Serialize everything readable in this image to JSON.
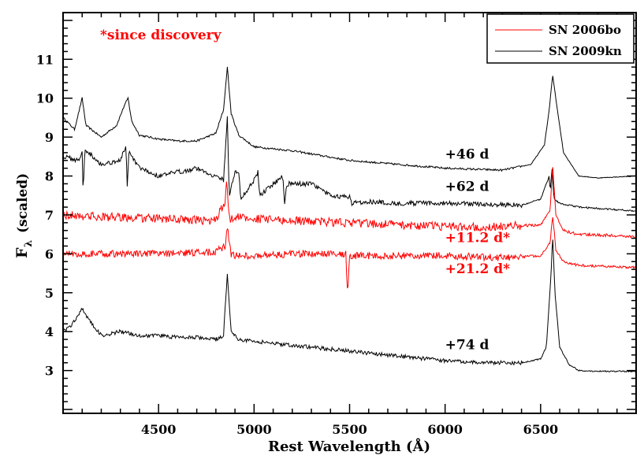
{
  "chart_data": {
    "type": "line",
    "xlabel": "Rest Wavelength (Å)",
    "ylabel_main": "F",
    "ylabel_sub": "λ",
    "ylabel_suffix": "(scaled)",
    "xlim": [
      4000,
      7000
    ],
    "ylim": [
      1.9,
      12.2
    ],
    "x_ticks": [
      4500,
      5000,
      5500,
      6000,
      6500
    ],
    "y_ticks": [
      3,
      4,
      5,
      6,
      7,
      8,
      9,
      10,
      11
    ],
    "note": "*since discovery",
    "note_color": "#ff0000",
    "legend": [
      {
        "label": "SN 2006bo",
        "color": "#ff0000"
      },
      {
        "label": "SN 2009kn",
        "color": "#000000"
      }
    ],
    "series": [
      {
        "name": "SN 2009kn +46 d",
        "label": "+46 d",
        "color": "#000000",
        "label_x": 6000,
        "label_y": 8.45,
        "noise": 0.05,
        "x": [
          4000,
          4060,
          4080,
          4100,
          4120,
          4200,
          4280,
          4320,
          4340,
          4360,
          4400,
          4500,
          4600,
          4700,
          4800,
          4840,
          4860,
          4880,
          4920,
          5000,
          5200,
          5500,
          6000,
          6300,
          6450,
          6520,
          6545,
          6563,
          6585,
          6620,
          6700,
          6800,
          7000
        ],
        "y": [
          9.5,
          9.2,
          9.6,
          10.0,
          9.3,
          9.0,
          9.3,
          9.8,
          10.0,
          9.4,
          9.05,
          8.95,
          8.9,
          8.9,
          9.1,
          9.7,
          10.8,
          9.6,
          9.05,
          8.75,
          8.65,
          8.4,
          8.2,
          8.15,
          8.3,
          8.8,
          9.7,
          10.6,
          9.8,
          8.6,
          8.0,
          7.95,
          8.0
        ]
      },
      {
        "name": "SN 2009kn +62 d",
        "label": "+62 d",
        "color": "#000000",
        "label_x": 6000,
        "label_y": 7.62,
        "noise": 0.12,
        "x": [
          4000,
          4080,
          4100,
          4105,
          4115,
          4200,
          4300,
          4330,
          4335,
          4345,
          4400,
          4500,
          4600,
          4700,
          4840,
          4850,
          4860,
          4870,
          4900,
          4920,
          4930,
          5000,
          5020,
          5030,
          5150,
          5160,
          5170,
          5300,
          5400,
          5500,
          5510,
          5600,
          5700,
          5800,
          6000,
          6400,
          6500,
          6545,
          6550,
          6560,
          6570,
          6600,
          6700,
          7000
        ],
        "y": [
          8.5,
          8.4,
          8.6,
          7.6,
          8.7,
          8.3,
          8.4,
          8.8,
          7.6,
          8.6,
          8.2,
          8.0,
          8.1,
          8.2,
          7.9,
          8.7,
          9.5,
          7.5,
          8.1,
          8.1,
          7.4,
          7.9,
          8.1,
          7.5,
          8.0,
          7.3,
          7.8,
          7.8,
          7.5,
          7.45,
          7.3,
          7.35,
          7.3,
          7.3,
          7.3,
          7.25,
          7.4,
          8.0,
          7.6,
          8.2,
          7.4,
          7.3,
          7.2,
          7.1
        ]
      },
      {
        "name": "SN 2006bo +11.2 d",
        "label": "+11.2 d*",
        "color": "#ff0000",
        "label_x": 6000,
        "label_y": 6.3,
        "noise": 0.22,
        "x": [
          4000,
          4200,
          4500,
          4800,
          4850,
          4855,
          4870,
          4900,
          5000,
          5200,
          5500,
          6000,
          6300,
          6500,
          6550,
          6563,
          6580,
          6620,
          6700,
          7000
        ],
        "y": [
          7.0,
          6.95,
          6.9,
          6.85,
          7.4,
          7.9,
          6.9,
          6.95,
          6.9,
          6.85,
          6.8,
          6.7,
          6.7,
          6.75,
          7.1,
          8.3,
          7.0,
          6.6,
          6.5,
          6.45
        ]
      },
      {
        "name": "SN 2006bo +21.2 d",
        "label": "+21.2 d*",
        "color": "#ff0000",
        "label_x": 6000,
        "label_y": 5.5,
        "noise": 0.18,
        "x": [
          4000,
          4200,
          4500,
          4800,
          4850,
          4860,
          4880,
          4900,
          5000,
          5200,
          5480,
          5490,
          5500,
          5600,
          6000,
          6300,
          6500,
          6550,
          6563,
          6580,
          6620,
          6700,
          7000
        ],
        "y": [
          6.0,
          6.0,
          6.0,
          6.05,
          6.2,
          6.7,
          6.0,
          5.95,
          5.95,
          6.0,
          6.0,
          5.0,
          5.95,
          5.95,
          5.95,
          5.9,
          5.95,
          6.3,
          7.0,
          6.1,
          5.8,
          5.7,
          5.65
        ]
      },
      {
        "name": "SN 2009kn +74 d",
        "label": "+74 d",
        "color": "#000000",
        "label_x": 6000,
        "label_y": 3.55,
        "noise": 0.1,
        "x": [
          4000,
          4050,
          4100,
          4150,
          4200,
          4300,
          4400,
          4500,
          4600,
          4700,
          4800,
          4840,
          4860,
          4880,
          4920,
          5000,
          5100,
          5200,
          5300,
          5400,
          5600,
          5800,
          6000,
          6200,
          6400,
          6500,
          6530,
          6555,
          6563,
          6575,
          6600,
          6650,
          6700,
          6800,
          7000
        ],
        "y": [
          4.0,
          4.2,
          4.6,
          4.2,
          3.9,
          4.0,
          3.9,
          3.9,
          3.85,
          3.85,
          3.8,
          3.9,
          5.5,
          4.0,
          3.8,
          3.75,
          3.7,
          3.65,
          3.6,
          3.55,
          3.45,
          3.35,
          3.25,
          3.2,
          3.2,
          3.3,
          3.6,
          5.5,
          6.5,
          5.0,
          3.6,
          3.15,
          3.0,
          2.98,
          2.98
        ]
      }
    ]
  }
}
